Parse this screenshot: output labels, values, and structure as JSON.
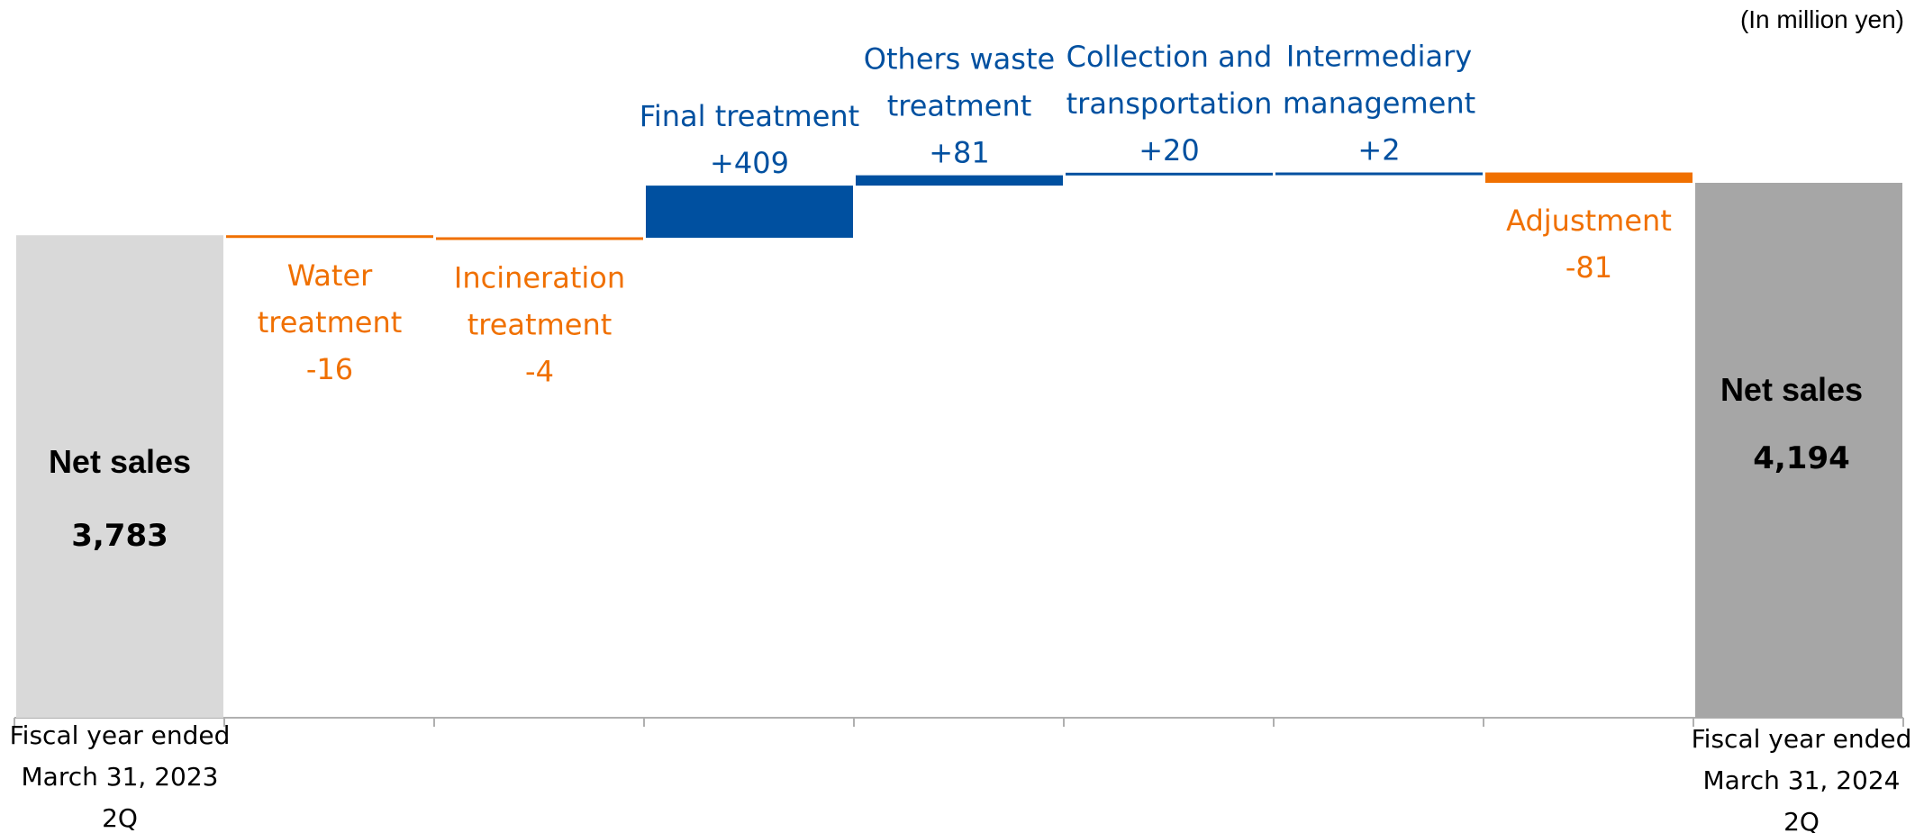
{
  "unit_note": "(In million yen)",
  "colors": {
    "start": "#d9d9d9",
    "end": "#a6a6a6",
    "increase": "#0050a0",
    "decrease": "#f07000",
    "axis": "#b0b0b0"
  },
  "chart_data": {
    "type": "waterfall",
    "title": "",
    "xlabel": "",
    "ylabel": "",
    "ylim": [
      0,
      5000
    ],
    "grid": false,
    "start": {
      "label": "Net sales",
      "value": 3783,
      "value_label": "3,783",
      "category": [
        "Fiscal year ended",
        "March 31, 2023",
        "2Q"
      ]
    },
    "steps": [
      {
        "name": [
          "Water",
          "treatment"
        ],
        "delta": -16,
        "delta_label": "-16"
      },
      {
        "name": [
          "Incineration",
          "treatment"
        ],
        "delta": -4,
        "delta_label": "-4"
      },
      {
        "name": [
          "Final treatment"
        ],
        "delta": 409,
        "delta_label": "+409"
      },
      {
        "name": [
          "Others waste",
          "treatment"
        ],
        "delta": 81,
        "delta_label": "+81"
      },
      {
        "name": [
          "Collection and",
          "transportation"
        ],
        "delta": 20,
        "delta_label": "+20"
      },
      {
        "name": [
          "Intermediary",
          "management"
        ],
        "delta": 2,
        "delta_label": "+2"
      },
      {
        "name": [
          "Adjustment"
        ],
        "delta": -81,
        "delta_label": "-81"
      }
    ],
    "end": {
      "label": "Net sales",
      "value": 4194,
      "value_label": "4,194",
      "category": [
        "Fiscal year ended",
        "March 31, 2024",
        "2Q"
      ]
    }
  }
}
